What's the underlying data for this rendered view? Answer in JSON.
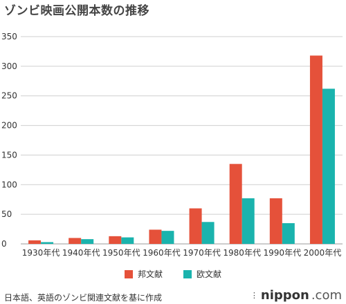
{
  "chart_data": {
    "type": "bar",
    "title": "ゾンビ映画公開本数の推移",
    "categories": [
      "1930年代",
      "1940年代",
      "1950年代",
      "1960年代",
      "1970年代",
      "1980年代",
      "1990年代",
      "2000年代"
    ],
    "series": [
      {
        "name": "邦文献",
        "color": "#e5513a",
        "values": [
          6,
          10,
          13,
          24,
          60,
          135,
          77,
          318
        ]
      },
      {
        "name": "欧文献",
        "color": "#1ab3ad",
        "values": [
          3,
          8,
          11,
          22,
          37,
          77,
          35,
          262
        ]
      }
    ],
    "yticks": [
      0,
      50,
      100,
      150,
      200,
      250,
      300,
      350
    ],
    "ylim": [
      0,
      350
    ],
    "grid": true,
    "legend_position": "bottom"
  },
  "footer": {
    "source": "日本語、英語のゾンビ関連文献を基に作成",
    "brand_name": "nippon",
    "brand_ext": ".com"
  }
}
